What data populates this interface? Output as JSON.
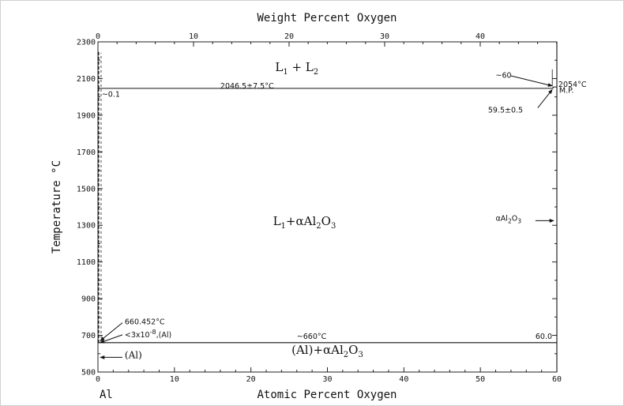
{
  "chart_data": {
    "type": "phase_diagram",
    "title": "",
    "x_bottom": {
      "label": "Atomic Percent Oxygen",
      "range": [
        0,
        60
      ],
      "ticks": [
        0,
        10,
        20,
        30,
        40,
        50,
        60
      ],
      "tick_labels": [
        "0",
        "10",
        "20",
        "30",
        "40",
        "50",
        "60"
      ]
    },
    "x_top": {
      "label": "Weight Percent Oxygen",
      "ticks": [
        0,
        10,
        20,
        30,
        40
      ],
      "tick_labels": [
        "0",
        "10",
        "20",
        "30",
        "40"
      ]
    },
    "y": {
      "label": "Temperature °C",
      "range": [
        500,
        2300
      ],
      "ticks": [
        500,
        700,
        900,
        1100,
        1300,
        1500,
        1700,
        1900,
        2100,
        2300
      ],
      "tick_labels": [
        "500",
        "700",
        "900",
        "1100",
        "1300",
        "1500",
        "1700",
        "1900",
        "2100",
        "2300"
      ]
    },
    "corner_label": "Al",
    "lines": [
      {
        "name": "monotectic",
        "points": [
          [
            0.1,
            2046.5
          ],
          [
            59.5,
            2046.5
          ]
        ],
        "style": "solid"
      },
      {
        "name": "eutectic",
        "points": [
          [
            0,
            660
          ],
          [
            60,
            660
          ]
        ],
        "style": "solid"
      },
      {
        "name": "alumina-phase",
        "points": [
          [
            60,
            500
          ],
          [
            60,
            2300
          ]
        ],
        "style": "solid"
      },
      {
        "name": "al-liquidus-solubility",
        "points": [
          [
            0.1,
            660
          ],
          [
            0.1,
            2046.5
          ]
        ],
        "style": "dashed"
      },
      {
        "name": "al-upper",
        "points": [
          [
            0.1,
            2046.5
          ],
          [
            0.1,
            2250
          ]
        ],
        "style": "dashed"
      },
      {
        "name": "liquid-boundary",
        "points": [
          [
            59.5,
            2046.5
          ],
          [
            59.5,
            2054
          ],
          [
            60,
            2054
          ]
        ],
        "style": "solid"
      }
    ],
    "region_labels": [
      {
        "x": 26,
        "y": 2140,
        "text_main": "L",
        "sub": "1",
        "text_after": " + L",
        "sub2": "2"
      },
      {
        "x": 27,
        "y": 1300,
        "text_main": "L",
        "sub": "1",
        "text_after": "+αAl",
        "sub2": "2",
        "text_tail": "O",
        "sub3": "3"
      },
      {
        "x": 30,
        "y": 600,
        "text_main": "(Al)+αAl",
        "sub": "2",
        "text_after": "O",
        "sub2": "3"
      }
    ],
    "annotations": [
      {
        "text": "2046.5±7.5°C",
        "x": 16,
        "y": 2046.5
      },
      {
        "text": "~0.1",
        "x": 0.5,
        "y": 2000
      },
      {
        "text": "~60",
        "x": 52,
        "y": 2105
      },
      {
        "text": "2054°C",
        "x": 60.2,
        "y": 2054
      },
      {
        "text": "M.P.",
        "x": 60.3,
        "y": 2022
      },
      {
        "text": "59.5±0.5",
        "x": 51,
        "y": 1915
      },
      {
        "text": "αAl2O3",
        "x": 52,
        "y": 1325
      },
      {
        "text": "660.452°C",
        "x": 3.5,
        "y": 760
      },
      {
        "text": "<3x10-8,(Al)",
        "x": 3.5,
        "y": 690
      },
      {
        "text": "~660°C",
        "x": 26,
        "y": 680
      },
      {
        "text": "60.0",
        "x": 57.2,
        "y": 680
      },
      {
        "text": "(Al)",
        "x": 3.5,
        "y": 575
      }
    ],
    "grid": false
  }
}
